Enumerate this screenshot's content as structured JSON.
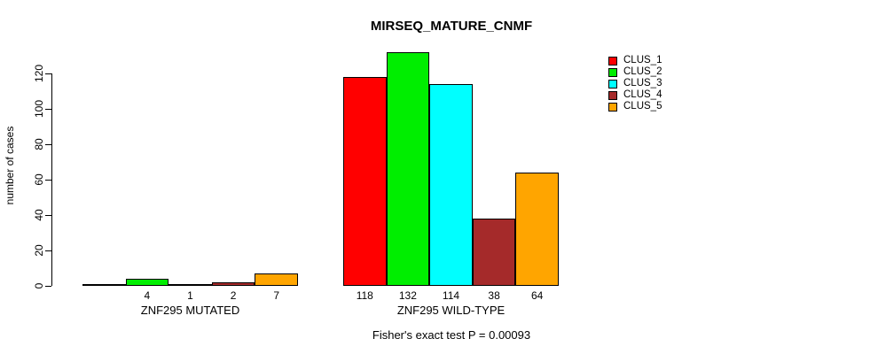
{
  "chart_data": {
    "type": "bar",
    "title": "MIRSEQ_MATURE_CNMF",
    "ylabel": "number of cases",
    "xlabel": "",
    "categories": [
      "ZNF295 MUTATED",
      "ZNF295 WILD-TYPE"
    ],
    "series": [
      {
        "name": "CLUS_1",
        "color": "#FF0000",
        "values": [
          0,
          118
        ]
      },
      {
        "name": "CLUS_2",
        "color": "#00EE00",
        "values": [
          4,
          132
        ]
      },
      {
        "name": "CLUS_3",
        "color": "#00FFFF",
        "values": [
          1,
          114
        ]
      },
      {
        "name": "CLUS_4",
        "color": "#A52A2A",
        "values": [
          2,
          38
        ]
      },
      {
        "name": "CLUS_5",
        "color": "#FFA500",
        "values": [
          7,
          64
        ]
      }
    ],
    "yticks": [
      0,
      20,
      40,
      60,
      80,
      100,
      120
    ],
    "ylim": [
      0,
      132
    ],
    "grid": false,
    "legend_position": "top-right",
    "bar_value_labels": {
      "ZNF295 MUTATED": [
        0,
        4,
        1,
        2,
        7
      ],
      "ZNF295 WILD-TYPE": [
        118,
        132,
        114,
        38,
        64
      ]
    },
    "show_zero_value_labels": false,
    "annotation": "Fisher's exact test P = 0.00093"
  },
  "colors": {
    "background": "#FFFFFF",
    "axis": "#000000",
    "bar_border": "#000000",
    "text": "#000000"
  }
}
